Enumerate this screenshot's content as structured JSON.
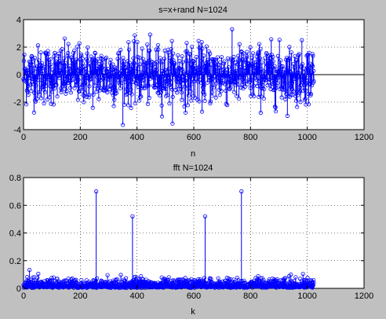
{
  "colors": {
    "series": "#0000ff",
    "background": "#c0c0c0",
    "axes_bg": "#ffffff"
  },
  "chart_data": [
    {
      "type": "stem",
      "title": "s=x+rand N=1024",
      "xlabel": "n",
      "ylabel": "",
      "xlim": [
        0,
        1200
      ],
      "ylim": [
        -4,
        4
      ],
      "xticks": [
        0,
        200,
        400,
        600,
        800,
        1000,
        1200
      ],
      "yticks": [
        -4,
        -2,
        0,
        2,
        4
      ],
      "xtick_labels": [
        "0",
        "200",
        "400",
        "600",
        "800",
        "1000",
        "1200"
      ],
      "ytick_labels": [
        "-4",
        "-2",
        "0",
        "2",
        "4"
      ],
      "grid": true,
      "n_points": 1024,
      "series": [
        {
          "description_values": "approximately normal noise, std ~1, range about -3.7 to 3.3 for n = 0..1023"
        }
      ]
    },
    {
      "type": "stem",
      "title": "fft N=1024",
      "xlabel": "k",
      "ylabel": "",
      "xlim": [
        0,
        1200
      ],
      "ylim": [
        0,
        0.8
      ],
      "xticks": [
        0,
        200,
        400,
        600,
        800,
        1000,
        1200
      ],
      "yticks": [
        0,
        0.2,
        0.4,
        0.6,
        0.8
      ],
      "xtick_labels": [
        "0",
        "200",
        "400",
        "600",
        "800",
        "1000",
        "1200"
      ],
      "ytick_labels": [
        "0",
        "0.2",
        "0.4",
        "0.6",
        "0.8"
      ],
      "grid": true,
      "n_points": 1024,
      "peaks": [
        {
          "x": 256,
          "y": 0.7
        },
        {
          "x": 384,
          "y": 0.52
        },
        {
          "x": 640,
          "y": 0.52
        },
        {
          "x": 768,
          "y": 0.7
        }
      ],
      "noise_floor_max": 0.15
    }
  ]
}
